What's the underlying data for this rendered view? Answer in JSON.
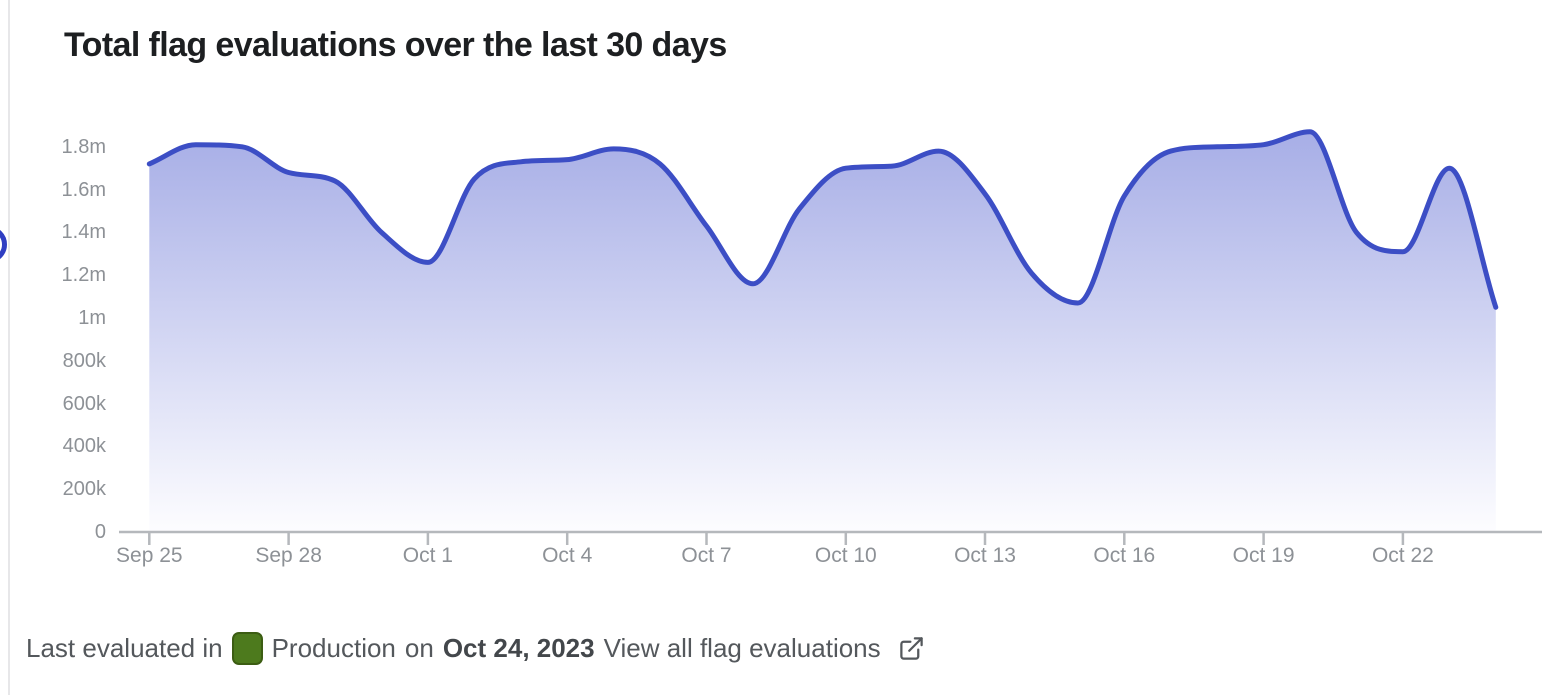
{
  "page": {
    "title": "Total flag evaluations over the last 30 days"
  },
  "chart_data": {
    "type": "area",
    "title": "Total flag evaluations over the last 30 days",
    "series_name": "Total flag evaluations",
    "x": [
      "Sep 25",
      "Sep 26",
      "Sep 27",
      "Sep 28",
      "Sep 29",
      "Sep 30",
      "Oct 1",
      "Oct 2",
      "Oct 3",
      "Oct 4",
      "Oct 5",
      "Oct 6",
      "Oct 7",
      "Oct 8",
      "Oct 9",
      "Oct 10",
      "Oct 11",
      "Oct 12",
      "Oct 13",
      "Oct 14",
      "Oct 15",
      "Oct 16",
      "Oct 17",
      "Oct 18",
      "Oct 19",
      "Oct 20",
      "Oct 21",
      "Oct 22",
      "Oct 23",
      "Oct 24"
    ],
    "values": [
      1720000,
      1810000,
      1800000,
      1680000,
      1640000,
      1400000,
      1260000,
      1650000,
      1730000,
      1740000,
      1790000,
      1720000,
      1430000,
      1160000,
      1510000,
      1700000,
      1710000,
      1780000,
      1580000,
      1210000,
      1070000,
      1570000,
      1780000,
      1800000,
      1810000,
      1870000,
      1400000,
      1310000,
      1700000,
      1050000
    ],
    "x_ticks": [
      {
        "day_index": 0,
        "label": "Sep 25"
      },
      {
        "day_index": 3,
        "label": "Sep 28"
      },
      {
        "day_index": 6,
        "label": "Oct 1"
      },
      {
        "day_index": 9,
        "label": "Oct 4"
      },
      {
        "day_index": 12,
        "label": "Oct 7"
      },
      {
        "day_index": 15,
        "label": "Oct 10"
      },
      {
        "day_index": 18,
        "label": "Oct 13"
      },
      {
        "day_index": 21,
        "label": "Oct 16"
      },
      {
        "day_index": 24,
        "label": "Oct 19"
      },
      {
        "day_index": 27,
        "label": "Oct 22"
      }
    ],
    "y_ticks": [
      {
        "value": 0,
        "label": "0"
      },
      {
        "value": 200000,
        "label": "200k"
      },
      {
        "value": 400000,
        "label": "400k"
      },
      {
        "value": 600000,
        "label": "600k"
      },
      {
        "value": 800000,
        "label": "800k"
      },
      {
        "value": 1000000,
        "label": "1m"
      },
      {
        "value": 1200000,
        "label": "1.2m"
      },
      {
        "value": 1400000,
        "label": "1.4m"
      },
      {
        "value": 1600000,
        "label": "1.6m"
      },
      {
        "value": 1800000,
        "label": "1.8m"
      }
    ],
    "ylim": [
      0,
      1880000
    ],
    "grid": false,
    "legend": false,
    "line_color": "#3c4ec5",
    "fill_gradient_top": "#a6ade6",
    "fill_gradient_bottom": "#fdfdff",
    "axis_color": "#b5b8bc"
  },
  "footer": {
    "prefix": "Last evaluated in",
    "environment": "Production",
    "environment_color": "#4d7a1d",
    "connector": "on",
    "date": "Oct 24, 2023",
    "link": "View all flag evaluations"
  }
}
